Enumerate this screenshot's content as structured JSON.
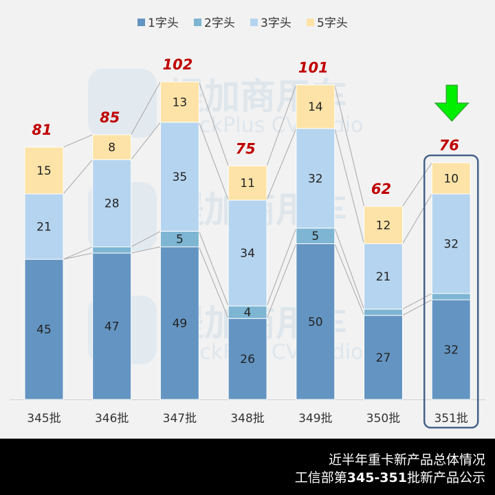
{
  "chart_data": {
    "type": "bar",
    "stacked": true,
    "categories": [
      "345批",
      "346批",
      "347批",
      "348批",
      "349批",
      "350批",
      "351批"
    ],
    "series": [
      {
        "name": "1字头",
        "color": "#6495c2",
        "values": [
          45,
          47,
          49,
          26,
          50,
          27,
          32
        ]
      },
      {
        "name": "2字头",
        "color": "#7db5d3",
        "values": [
          0,
          2,
          5,
          4,
          5,
          2,
          2
        ]
      },
      {
        "name": "3字头",
        "color": "#b5d4ef",
        "values": [
          21,
          28,
          35,
          34,
          32,
          21,
          32
        ]
      },
      {
        "name": "5字头",
        "color": "#fde3a7",
        "values": [
          15,
          8,
          13,
          11,
          14,
          12,
          10
        ]
      }
    ],
    "totals": [
      81,
      85,
      102,
      75,
      101,
      62,
      76
    ],
    "total_label_color": "#c00000",
    "highlighted_category": "351批",
    "highlight_marker": "green-down-arrow",
    "legend_position": "top",
    "grid": false,
    "ylim": [
      0,
      102
    ]
  },
  "watermark": {
    "brand": "提加商用车",
    "sub": "TruckPlus CVstudio"
  },
  "footer": {
    "line1": "近半年重卡新产品总体情况",
    "line2_prefix": "工信部第",
    "line2_bold": "345-351",
    "line2_suffix": "批新产品公示"
  }
}
